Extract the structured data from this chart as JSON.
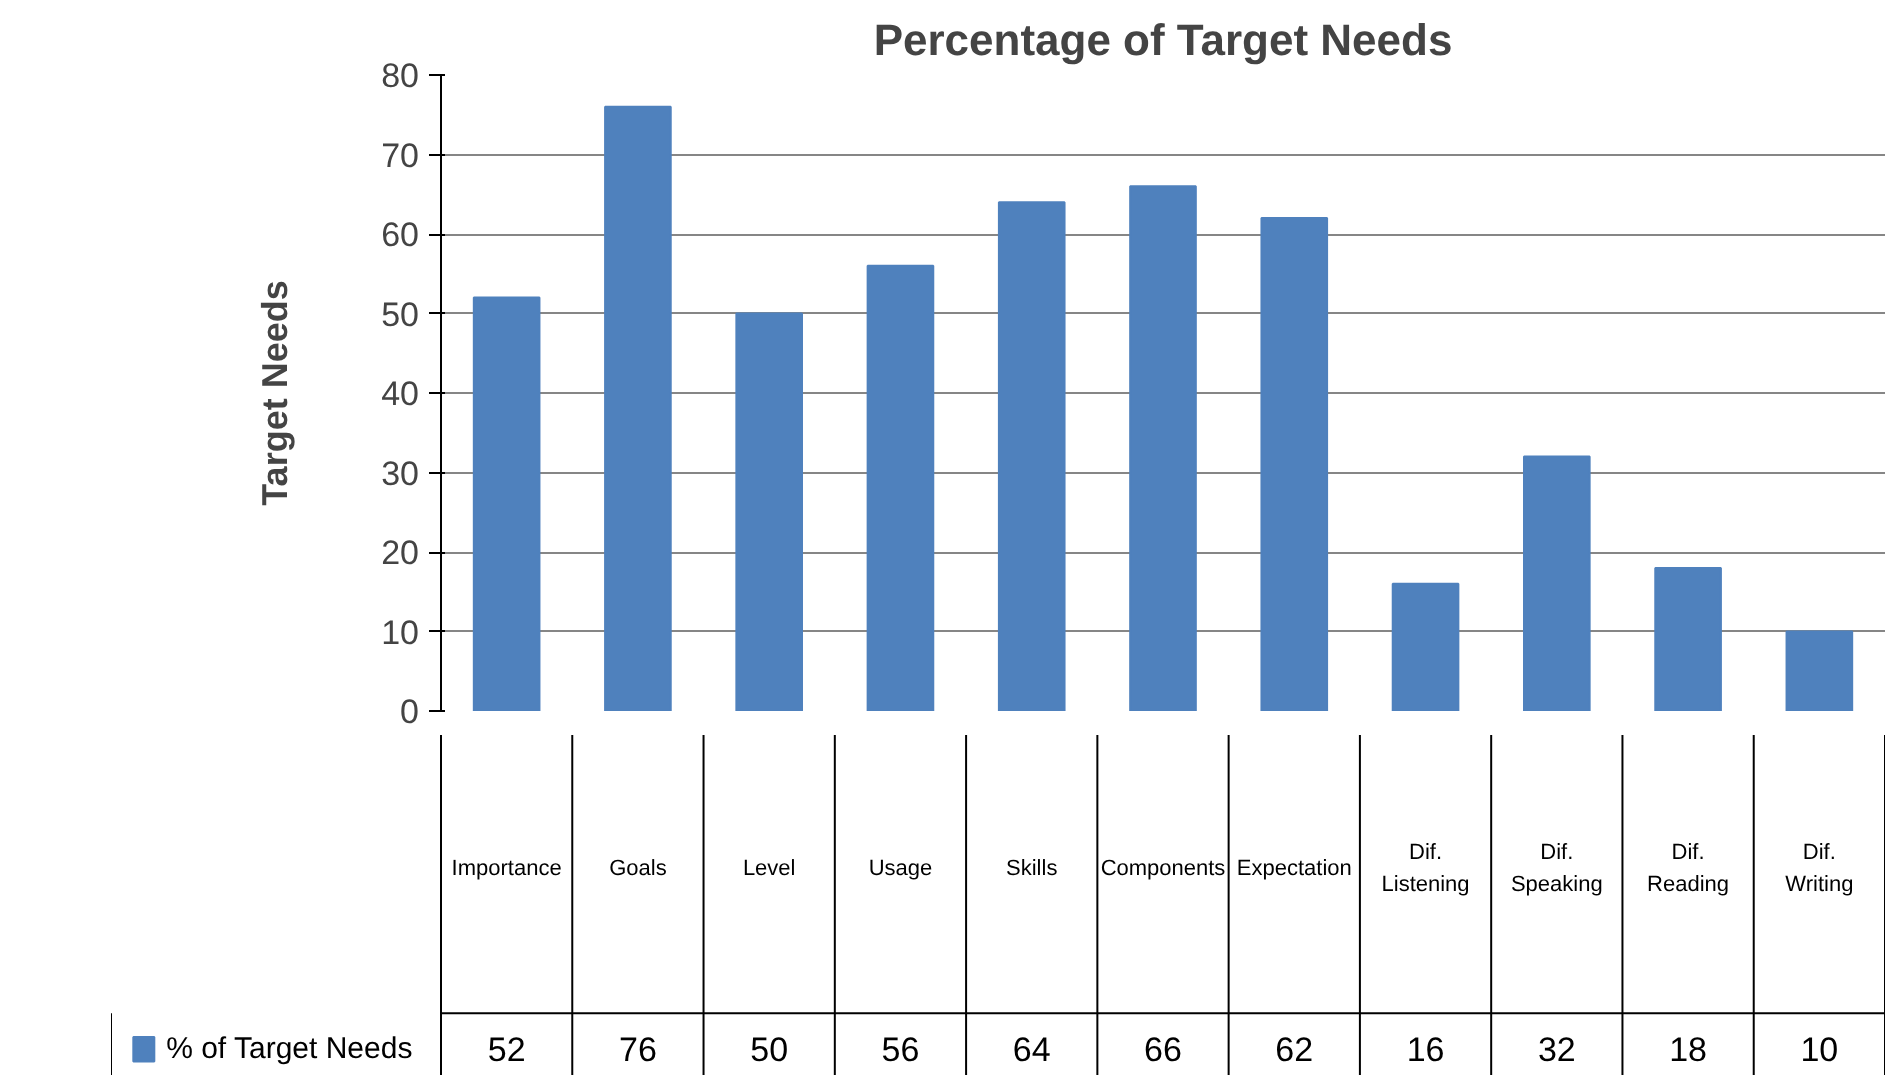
{
  "chart_data": {
    "type": "bar",
    "title": "Percentage of Target Needs",
    "ylabel": "Target Needs",
    "categories": [
      "Importance",
      "Goals",
      "Level",
      "Usage",
      "Skills",
      "Components",
      "Expectation",
      "Dif. Listening",
      "Dif. Speaking",
      "Dif. Reading",
      "Dif. Writing"
    ],
    "series": [
      {
        "name": "% of Target Needs",
        "color": "#4f81bd",
        "values": [
          52,
          76,
          50,
          56,
          64,
          66,
          62,
          16,
          32,
          18,
          10
        ]
      }
    ],
    "ylim": [
      0,
      80
    ],
    "yticks": [
      0,
      10,
      20,
      30,
      40,
      50,
      60,
      70,
      80
    ],
    "grid": "y",
    "legend": "bottom",
    "data_labels": true
  }
}
